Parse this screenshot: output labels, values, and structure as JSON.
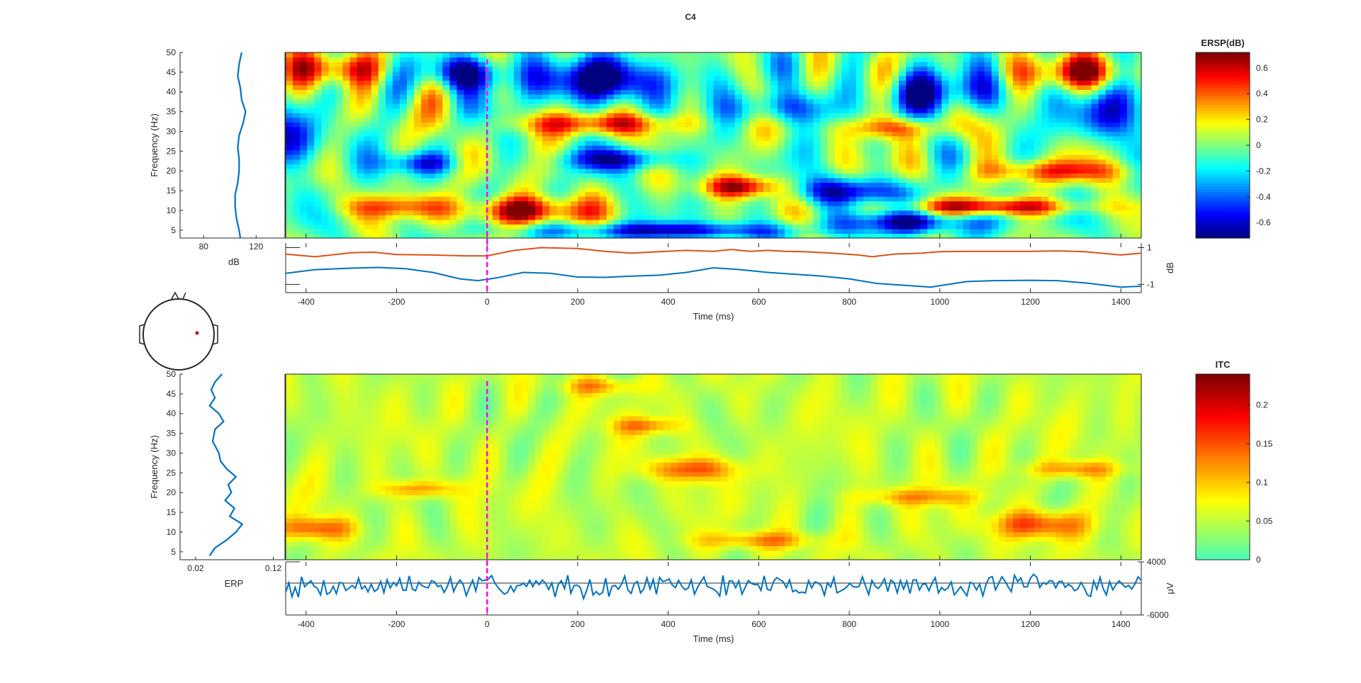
{
  "figure": {
    "title": "C4"
  },
  "chart_data": [
    {
      "name": "ersp",
      "type": "heatmap",
      "title": "",
      "xlabel": "Time (ms)",
      "ylabel": "Frequency (Hz)",
      "xlim": [
        -445,
        1445
      ],
      "ylim": [
        3,
        50
      ],
      "x_ticks": [
        -400,
        -200,
        0,
        200,
        400,
        600,
        800,
        1000,
        1200,
        1400
      ],
      "y_ticks": [
        5,
        10,
        15,
        20,
        25,
        30,
        35,
        40,
        45,
        50
      ],
      "event_line_ms": 0,
      "colorbar": {
        "title": "ERSP(dB)",
        "min": -0.72,
        "max": 0.72,
        "ticks": [
          -0.6,
          -0.4,
          -0.2,
          0,
          0.2,
          0.4,
          0.6
        ],
        "colormap": "jet"
      },
      "blobs": [
        {
          "t": 80,
          "f": 10,
          "amp": 0.72,
          "st": 90,
          "sf": 2.5
        },
        {
          "t": 560,
          "f": 16,
          "amp": 0.7,
          "st": 60,
          "sf": 2
        },
        {
          "t": -320,
          "f": 46,
          "amp": 0.55,
          "st": 70,
          "sf": 3
        },
        {
          "t": 250,
          "f": 32,
          "amp": 0.5,
          "st": 140,
          "sf": 2
        },
        {
          "t": 1120,
          "f": 11,
          "amp": 0.6,
          "st": 150,
          "sf": 1.5
        },
        {
          "t": 1300,
          "f": 45,
          "amp": 0.55,
          "st": 90,
          "sf": 3
        },
        {
          "t": -50,
          "f": 45,
          "amp": -0.7,
          "st": 60,
          "sf": 3
        },
        {
          "t": 250,
          "f": 43,
          "amp": -0.72,
          "st": 130,
          "sf": 4
        },
        {
          "t": 800,
          "f": 15,
          "amp": -0.62,
          "st": 90,
          "sf": 2.5
        },
        {
          "t": 1000,
          "f": 40,
          "amp": -0.6,
          "st": 90,
          "sf": 4
        },
        {
          "t": 1380,
          "f": 35,
          "amp": -0.6,
          "st": 60,
          "sf": 5
        },
        {
          "t": -430,
          "f": 27,
          "amp": -0.55,
          "st": 60,
          "sf": 5
        },
        {
          "t": 950,
          "f": 7,
          "amp": -0.6,
          "st": 120,
          "sf": 2
        },
        {
          "t": 650,
          "f": 36,
          "amp": -0.5,
          "st": 70,
          "sf": 3
        },
        {
          "t": -150,
          "f": 22,
          "amp": -0.45,
          "st": 60,
          "sf": 2
        },
        {
          "t": 300,
          "f": 23,
          "amp": -0.55,
          "st": 90,
          "sf": 2
        },
        {
          "t": 400,
          "f": 5,
          "amp": -0.6,
          "st": 200,
          "sf": 1.5
        },
        {
          "t": 900,
          "f": 31,
          "amp": 0.45,
          "st": 80,
          "sf": 2
        },
        {
          "t": -200,
          "f": 11,
          "amp": 0.4,
          "st": 80,
          "sf": 2
        },
        {
          "t": 1250,
          "f": 20,
          "amp": 0.45,
          "st": 120,
          "sf": 2
        }
      ],
      "marginal": {
        "xlabel": "dB",
        "xlim": [
          62,
          142
        ],
        "x_ticks": [
          80,
          120
        ],
        "points": [
          [
            109,
            50
          ],
          [
            107,
            47
          ],
          [
            106,
            44
          ],
          [
            108,
            41
          ],
          [
            109,
            38
          ],
          [
            112,
            35
          ],
          [
            110,
            32
          ],
          [
            107,
            29
          ],
          [
            106,
            26
          ],
          [
            107,
            23
          ],
          [
            107,
            20
          ],
          [
            106,
            17
          ],
          [
            104,
            14
          ],
          [
            104,
            11
          ],
          [
            105,
            8
          ],
          [
            107,
            5
          ],
          [
            108,
            3
          ]
        ]
      },
      "bottom": {
        "ylabel": "dB",
        "ylim": [
          -1.45,
          1.25
        ],
        "y_ticks": [
          -1,
          1
        ],
        "series": [
          {
            "color": "#D95319",
            "points": [
              [
                -445,
                0.65
              ],
              [
                -380,
                0.5
              ],
              [
                -300,
                0.72
              ],
              [
                -250,
                0.75
              ],
              [
                -200,
                0.62
              ],
              [
                -120,
                0.6
              ],
              [
                -50,
                0.55
              ],
              [
                0,
                0.55
              ],
              [
                60,
                0.85
              ],
              [
                120,
                1.0
              ],
              [
                200,
                0.95
              ],
              [
                260,
                0.8
              ],
              [
                320,
                0.7
              ],
              [
                380,
                0.78
              ],
              [
                440,
                0.85
              ],
              [
                500,
                0.8
              ],
              [
                540,
                0.9
              ],
              [
                580,
                0.8
              ],
              [
                620,
                0.85
              ],
              [
                660,
                0.8
              ],
              [
                700,
                0.78
              ],
              [
                760,
                0.7
              ],
              [
                820,
                0.6
              ],
              [
                850,
                0.5
              ],
              [
                900,
                0.65
              ],
              [
                960,
                0.7
              ],
              [
                1000,
                0.78
              ],
              [
                1060,
                0.8
              ],
              [
                1120,
                0.8
              ],
              [
                1200,
                0.8
              ],
              [
                1260,
                0.82
              ],
              [
                1320,
                0.78
              ],
              [
                1400,
                0.6
              ],
              [
                1445,
                0.7
              ]
            ]
          },
          {
            "color": "#0072BD",
            "points": [
              [
                -445,
                -0.4
              ],
              [
                -380,
                -0.2
              ],
              [
                -300,
                -0.12
              ],
              [
                -240,
                -0.08
              ],
              [
                -180,
                -0.15
              ],
              [
                -120,
                -0.35
              ],
              [
                -60,
                -0.7
              ],
              [
                -20,
                -0.8
              ],
              [
                20,
                -0.65
              ],
              [
                80,
                -0.35
              ],
              [
                140,
                -0.4
              ],
              [
                200,
                -0.6
              ],
              [
                260,
                -0.62
              ],
              [
                320,
                -0.55
              ],
              [
                380,
                -0.5
              ],
              [
                440,
                -0.35
              ],
              [
                500,
                -0.1
              ],
              [
                560,
                -0.2
              ],
              [
                620,
                -0.35
              ],
              [
                680,
                -0.45
              ],
              [
                740,
                -0.55
              ],
              [
                800,
                -0.7
              ],
              [
                860,
                -0.95
              ],
              [
                920,
                -1.05
              ],
              [
                980,
                -1.15
              ],
              [
                1020,
                -1.0
              ],
              [
                1060,
                -0.85
              ],
              [
                1120,
                -0.8
              ],
              [
                1200,
                -0.78
              ],
              [
                1260,
                -0.8
              ],
              [
                1320,
                -0.92
              ],
              [
                1400,
                -1.15
              ],
              [
                1445,
                -1.1
              ]
            ]
          }
        ]
      }
    },
    {
      "name": "itc",
      "type": "heatmap",
      "title": "",
      "xlabel": "Time (ms)",
      "ylabel": "Frequency (Hz)",
      "xlim": [
        -445,
        1445
      ],
      "ylim": [
        3,
        50
      ],
      "x_ticks": [
        -400,
        -200,
        0,
        200,
        400,
        600,
        800,
        1000,
        1200,
        1400
      ],
      "y_ticks": [
        5,
        10,
        15,
        20,
        25,
        30,
        35,
        40,
        45,
        50
      ],
      "event_line_ms": 0,
      "colorbar": {
        "title": "ITC",
        "min": 0,
        "max": 0.24,
        "ticks": [
          0,
          0.05,
          0.1,
          0.15,
          0.2
        ],
        "colormap": "jet-upper"
      },
      "blobs": [
        {
          "t": 1220,
          "f": 12,
          "amp": 0.12,
          "st": 70,
          "sf": 2.5
        },
        {
          "t": -380,
          "f": 11,
          "amp": 0.1,
          "st": 60,
          "sf": 2
        },
        {
          "t": 450,
          "f": 26,
          "amp": 0.1,
          "st": 70,
          "sf": 2
        },
        {
          "t": 350,
          "f": 37,
          "amp": 0.08,
          "st": 50,
          "sf": 1.5
        },
        {
          "t": -150,
          "f": 21,
          "amp": 0.08,
          "st": 60,
          "sf": 1.5
        },
        {
          "t": 600,
          "f": 8,
          "amp": 0.08,
          "st": 90,
          "sf": 1.5
        },
        {
          "t": 1300,
          "f": 26,
          "amp": 0.08,
          "st": 70,
          "sf": 1.5
        },
        {
          "t": 950,
          "f": 19,
          "amp": 0.07,
          "st": 90,
          "sf": 1.5
        },
        {
          "t": 250,
          "f": 47,
          "amp": 0.07,
          "st": 60,
          "sf": 1.5
        }
      ],
      "marginal": {
        "xlabel": "ERP",
        "xlim": [
          0.0,
          0.135
        ],
        "x_ticks": [
          0.02,
          0.12
        ],
        "points": [
          [
            0.054,
            50
          ],
          [
            0.045,
            48
          ],
          [
            0.04,
            46
          ],
          [
            0.045,
            44
          ],
          [
            0.038,
            42
          ],
          [
            0.05,
            40
          ],
          [
            0.056,
            38
          ],
          [
            0.045,
            36
          ],
          [
            0.042,
            33
          ],
          [
            0.05,
            30
          ],
          [
            0.052,
            28
          ],
          [
            0.06,
            26
          ],
          [
            0.072,
            24
          ],
          [
            0.062,
            22
          ],
          [
            0.066,
            20
          ],
          [
            0.058,
            18
          ],
          [
            0.07,
            16
          ],
          [
            0.064,
            14
          ],
          [
            0.08,
            12
          ],
          [
            0.072,
            10
          ],
          [
            0.06,
            8
          ],
          [
            0.045,
            6
          ],
          [
            0.038,
            4
          ]
        ]
      },
      "bottom": {
        "ylabel": "μV",
        "ylim": [
          -6000,
          4000
        ],
        "y_ticks": [
          -6000,
          4000
        ],
        "series": [
          {
            "color": "#0072BD",
            "seed": 7,
            "mean": -500,
            "amplitude": 2500
          }
        ]
      }
    }
  ]
}
